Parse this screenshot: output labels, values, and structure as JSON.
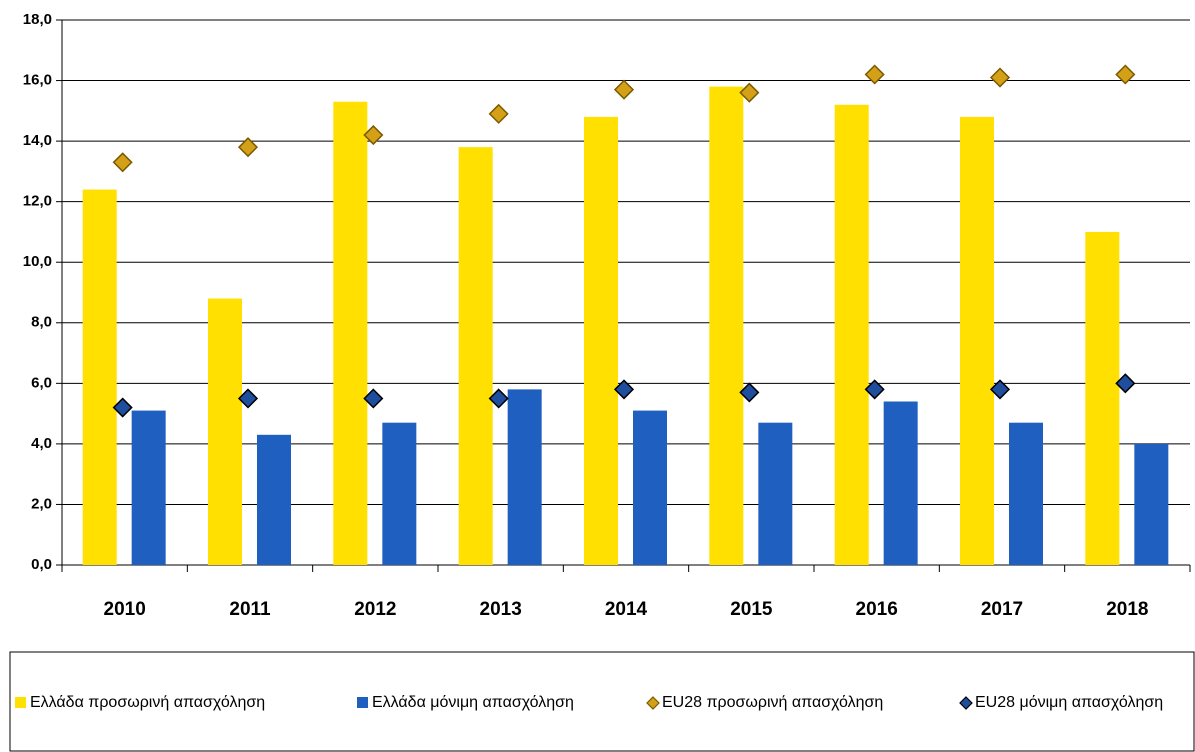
{
  "chart_data": {
    "type": "bar",
    "categories": [
      "2010",
      "2011",
      "2012",
      "2013",
      "2014",
      "2015",
      "2016",
      "2017",
      "2018"
    ],
    "series": [
      {
        "name": "Ελλάδα προσωρινή απασχόληση",
        "color": "#ffe000",
        "mark": "bar",
        "values": [
          12.4,
          8.8,
          15.3,
          13.8,
          14.8,
          15.8,
          15.2,
          14.8,
          11.0
        ]
      },
      {
        "name": "Ελλάδα μόνιμη απασχόληση",
        "color": "#1f5fbf",
        "mark": "bar",
        "values": [
          5.1,
          4.3,
          4.7,
          5.8,
          5.1,
          4.7,
          5.4,
          4.7,
          4.0
        ]
      },
      {
        "name": "EU28 προσωρινή απασχόληση",
        "color": "#d4a017",
        "mark": "diamond",
        "values": [
          13.3,
          13.8,
          14.2,
          14.9,
          15.7,
          15.6,
          16.2,
          16.1,
          16.2
        ]
      },
      {
        "name": "EU28 μόνιμη απασχόληση",
        "color": "#1f4e9e",
        "mark": "diamond",
        "values": [
          5.2,
          5.5,
          5.5,
          5.5,
          5.8,
          5.7,
          5.8,
          5.8,
          6.0
        ]
      }
    ],
    "ylim": [
      0,
      18
    ],
    "yticks": [
      {
        "value": 0,
        "label": "0,0"
      },
      {
        "value": 2,
        "label": "2,0"
      },
      {
        "value": 4,
        "label": "4,0"
      },
      {
        "value": 6,
        "label": "6,0"
      },
      {
        "value": 8,
        "label": "8,0"
      },
      {
        "value": 10,
        "label": "10,0"
      },
      {
        "value": 12,
        "label": "12,0"
      },
      {
        "value": 14,
        "label": "14,0"
      },
      {
        "value": 16,
        "label": "16,0"
      },
      {
        "value": 18,
        "label": "18,0"
      }
    ],
    "grid": true,
    "legend": "bottom"
  }
}
